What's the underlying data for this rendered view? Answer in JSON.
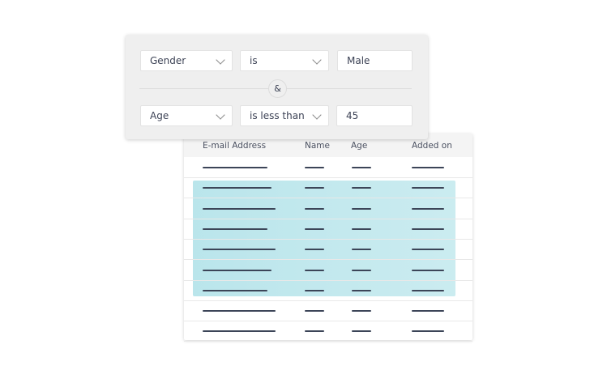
{
  "filter": {
    "rows": [
      {
        "field": "Gender",
        "operator": "is",
        "value": "Male"
      },
      {
        "field": "Age",
        "operator": "is less than",
        "value": "45"
      }
    ],
    "conjunction": "&"
  },
  "table": {
    "columns": [
      "E-mail Address",
      "Name",
      "Age",
      "Added on"
    ],
    "row_count": 9,
    "highlighted_rows": [
      2,
      3,
      4,
      5,
      6,
      7
    ],
    "highlight_color": "#8cd4de"
  }
}
